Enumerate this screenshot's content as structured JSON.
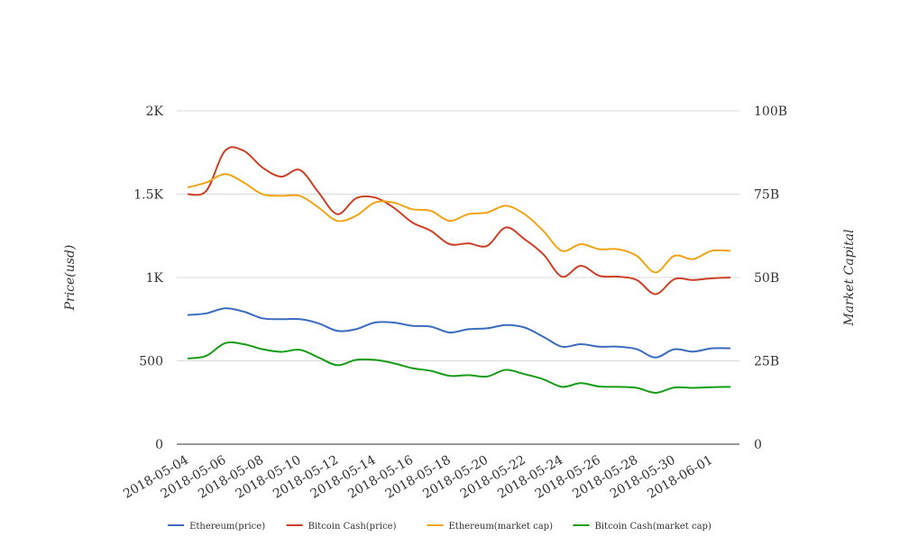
{
  "chart_data": {
    "type": "line",
    "title": "",
    "ylabel": "Price(usd)",
    "y2label": "Market Capital",
    "ylim": [
      0,
      2000
    ],
    "y2lim": [
      0,
      100000000000
    ],
    "yticks": [
      "0",
      "500",
      "1K",
      "1.5K",
      "2K"
    ],
    "y2ticks": [
      "0",
      "25B",
      "50B",
      "75B",
      "100B"
    ],
    "grid": true,
    "legend": "bottom-center",
    "x": [
      "2018-05-04",
      "2018-05-05",
      "2018-05-06",
      "2018-05-07",
      "2018-05-08",
      "2018-05-09",
      "2018-05-10",
      "2018-05-11",
      "2018-05-12",
      "2018-05-13",
      "2018-05-14",
      "2018-05-15",
      "2018-05-16",
      "2018-05-17",
      "2018-05-18",
      "2018-05-19",
      "2018-05-20",
      "2018-05-21",
      "2018-05-22",
      "2018-05-23",
      "2018-05-24",
      "2018-05-25",
      "2018-05-26",
      "2018-05-27",
      "2018-05-28",
      "2018-05-29",
      "2018-05-30",
      "2018-05-31",
      "2018-06-01",
      "2018-06-02"
    ],
    "xticks": [
      "2018-05-04",
      "2018-05-06",
      "2018-05-08",
      "2018-05-10",
      "2018-05-12",
      "2018-05-14",
      "2018-05-16",
      "2018-05-18",
      "2018-05-20",
      "2018-05-22",
      "2018-05-24",
      "2018-05-26",
      "2018-05-28",
      "2018-05-30",
      "2018-06-01"
    ],
    "series": [
      {
        "name": "Ethereum(price)",
        "axis": "left",
        "color": "#3a6bbf",
        "values": [
          775,
          785,
          815,
          795,
          755,
          750,
          750,
          725,
          680,
          690,
          730,
          730,
          710,
          705,
          670,
          690,
          695,
          715,
          700,
          645,
          585,
          600,
          585,
          585,
          570,
          520,
          570,
          555,
          575,
          575
        ]
      },
      {
        "name": "Bitcoin Cash(price)",
        "axis": "left",
        "color": "#cc4125",
        "values": [
          1500,
          1520,
          1760,
          1760,
          1660,
          1605,
          1645,
          1510,
          1380,
          1475,
          1480,
          1420,
          1330,
          1280,
          1200,
          1205,
          1190,
          1300,
          1230,
          1140,
          1005,
          1070,
          1010,
          1005,
          985,
          900,
          990,
          985,
          995,
          1000
        ]
      },
      {
        "name": "Ethereum(market cap)",
        "axis": "right",
        "color": "#f1a417",
        "values": [
          77000000000,
          78500000000,
          81000000000,
          78500000000,
          75000000000,
          74500000000,
          74500000000,
          71000000000,
          67000000000,
          68500000000,
          72500000000,
          72500000000,
          70500000000,
          70000000000,
          67000000000,
          69000000000,
          69500000000,
          71500000000,
          69000000000,
          64000000000,
          58000000000,
          60000000000,
          58500000000,
          58500000000,
          56500000000,
          51500000000,
          56500000000,
          55500000000,
          58000000000,
          58000000000
        ]
      },
      {
        "name": "Bitcoin Cash(market cap)",
        "axis": "right",
        "color": "#179c17",
        "values": [
          25700000000,
          26500000000,
          30300000000,
          30000000000,
          28500000000,
          27700000000,
          28300000000,
          26000000000,
          23700000000,
          25300000000,
          25300000000,
          24300000000,
          22800000000,
          22000000000,
          20500000000,
          20700000000,
          20300000000,
          22300000000,
          21000000000,
          19500000000,
          17200000000,
          18300000000,
          17300000000,
          17200000000,
          16900000000,
          15400000000,
          17000000000,
          16900000000,
          17100000000,
          17200000000
        ]
      }
    ]
  }
}
